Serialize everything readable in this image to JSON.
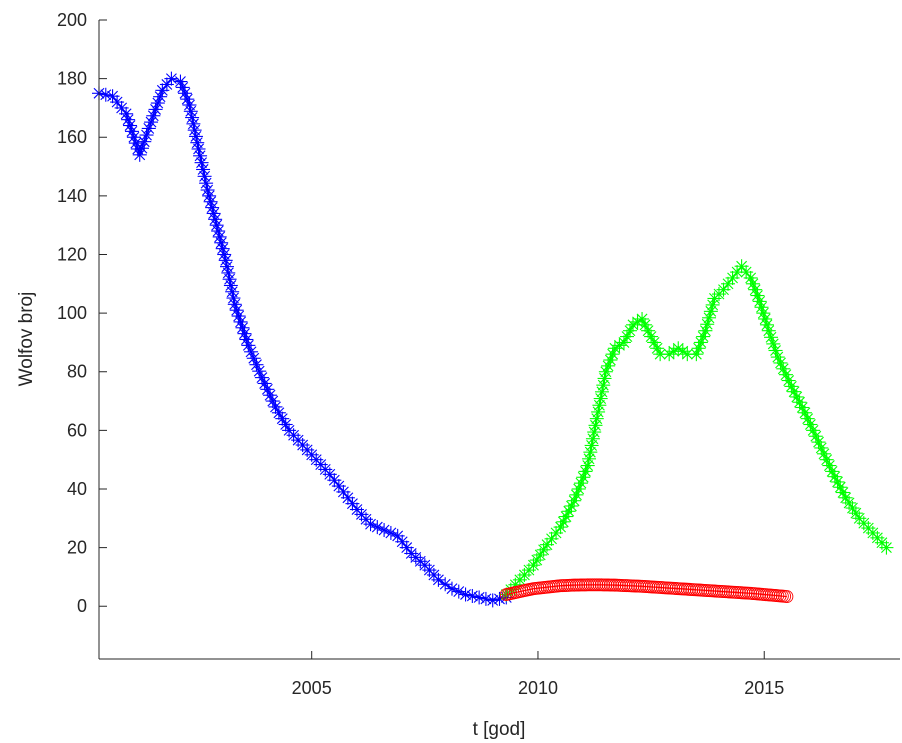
{
  "chart_data": {
    "type": "scatter",
    "title": "",
    "xlabel": "t [god]",
    "ylabel": "Wolfov broj",
    "xlim": [
      2000.3,
      2018.0
    ],
    "ylim": [
      -18,
      200
    ],
    "xticks": [
      2005,
      2010,
      2015
    ],
    "yticks": [
      0,
      20,
      40,
      60,
      80,
      100,
      120,
      140,
      160,
      180,
      200
    ],
    "grid": false,
    "legend": "none",
    "series": [
      {
        "marker": "asterisk",
        "color": "#0000ff",
        "x": [
          2000.3,
          2000.6,
          2000.9,
          2001.2,
          2001.4,
          2001.7,
          2001.9,
          2002.1,
          2002.3,
          2002.5,
          2002.7,
          2002.9,
          2003.1,
          2003.3,
          2003.6,
          2003.9,
          2004.2,
          2004.5,
          2004.8,
          2005.1,
          2005.4,
          2005.7,
          2006.0,
          2006.3,
          2006.6,
          2006.9,
          2007.2,
          2007.5,
          2007.8,
          2008.1,
          2008.4,
          2008.7,
          2009.0,
          2009.3
        ],
        "y": [
          175,
          174,
          168,
          154,
          163,
          176,
          180,
          179,
          171,
          156,
          142,
          130,
          118,
          103,
          89,
          78,
          68,
          60,
          55,
          50,
          45,
          39,
          33,
          28,
          26,
          24,
          18,
          14,
          9,
          6,
          4,
          3,
          2,
          3
        ]
      },
      {
        "marker": "asterisk",
        "color": "#00ff00",
        "x": [
          2009.3,
          2009.6,
          2009.9,
          2010.2,
          2010.5,
          2010.8,
          2011.1,
          2011.3,
          2011.5,
          2011.7,
          2011.9,
          2012.1,
          2012.3,
          2012.5,
          2012.7,
          2012.9,
          2013.1,
          2013.3,
          2013.5,
          2013.7,
          2013.9,
          2014.1,
          2014.3,
          2014.5,
          2014.7,
          2014.9,
          2015.1,
          2015.3,
          2015.6,
          2015.9,
          2016.2,
          2016.5,
          2016.8,
          2017.1,
          2017.4,
          2017.7
        ],
        "y": [
          4,
          9,
          14,
          21,
          27,
          36,
          48,
          64,
          80,
          88,
          90,
          96,
          98,
          92,
          86,
          86,
          88,
          86,
          86,
          94,
          105,
          108,
          112,
          116,
          112,
          104,
          94,
          85,
          75,
          66,
          56,
          46,
          37,
          30,
          25,
          20
        ]
      },
      {
        "marker": "circle",
        "color": "#ff0000",
        "x": [
          2009.3,
          2009.6,
          2009.9,
          2010.2,
          2010.5,
          2010.8,
          2011.1,
          2011.4,
          2011.7,
          2012.0,
          2012.3,
          2012.6,
          2012.9,
          2013.2,
          2013.5,
          2013.8,
          2014.1,
          2014.4,
          2014.7,
          2015.0,
          2015.3,
          2015.5
        ],
        "y": [
          4,
          5,
          6,
          6.5,
          7,
          7.2,
          7.3,
          7.3,
          7.2,
          7.0,
          6.8,
          6.5,
          6.2,
          5.9,
          5.6,
          5.3,
          5.0,
          4.7,
          4.4,
          4.0,
          3.6,
          3.3
        ]
      }
    ]
  }
}
